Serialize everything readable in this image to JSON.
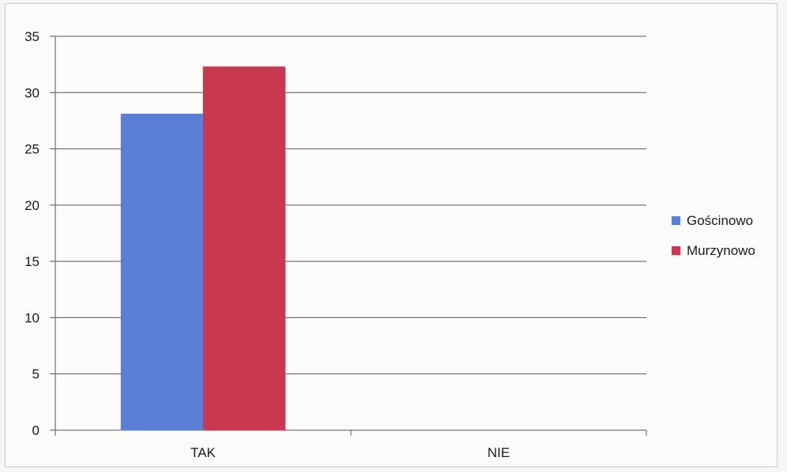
{
  "chart_data": {
    "type": "bar",
    "categories": [
      "TAK",
      "NIE"
    ],
    "series": [
      {
        "name": "Gościnowo",
        "values": [
          28.1,
          0
        ],
        "color": "#5b7fd6"
      },
      {
        "name": "Murzynowo",
        "values": [
          32.3,
          0
        ],
        "color": "#c8394f"
      }
    ],
    "ylim": [
      0,
      35
    ],
    "yticks": [
      0,
      5,
      10,
      15,
      20,
      25,
      30,
      35
    ],
    "grid": true,
    "legend_position": "right",
    "title": "",
    "xlabel": "",
    "ylabel": ""
  }
}
